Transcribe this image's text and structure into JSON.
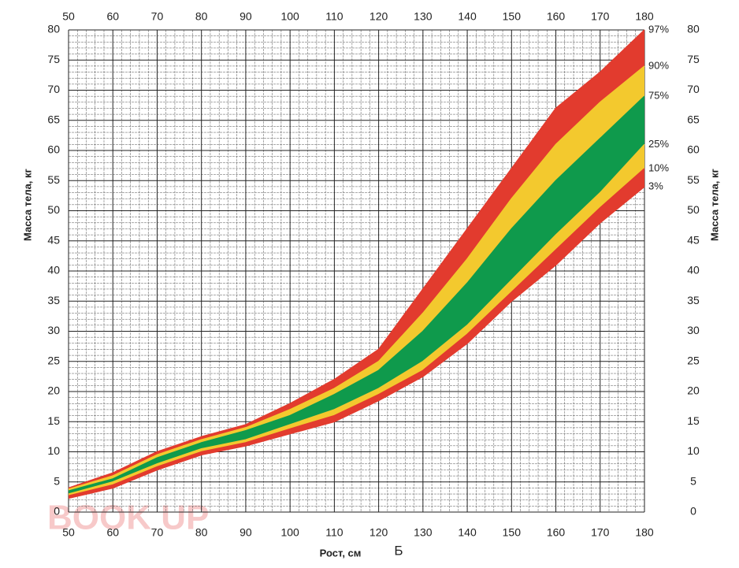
{
  "chart_data": {
    "type": "band",
    "x_label": "Рост, см",
    "y_label": "Масса тела, кг",
    "caption": "Б",
    "watermark": "BOOK UP",
    "x": [
      50,
      60,
      70,
      80,
      90,
      100,
      110,
      120,
      130,
      140,
      150,
      160,
      170,
      180
    ],
    "xlim": [
      50,
      180
    ],
    "xticks": [
      50,
      60,
      70,
      80,
      90,
      100,
      110,
      120,
      130,
      140,
      150,
      160,
      170,
      180
    ],
    "ylim": [
      0,
      80
    ],
    "yticks": [
      0,
      5,
      10,
      15,
      20,
      25,
      30,
      35,
      40,
      45,
      50,
      55,
      60,
      65,
      70,
      75,
      80
    ],
    "grid": true,
    "series": [
      {
        "name": "97%",
        "color": "#e23b2e",
        "values": [
          4,
          6.5,
          10,
          12.5,
          14.5,
          18,
          22,
          27,
          37,
          47,
          57,
          67,
          73,
          80
        ]
      },
      {
        "name": "90%",
        "color": "#f3c92e",
        "values": [
          3.8,
          6,
          9.5,
          12,
          14,
          17,
          20.5,
          25,
          33,
          42,
          52,
          61,
          68,
          74
        ]
      },
      {
        "name": "75%",
        "color": "#0f9a4c",
        "values": [
          3.5,
          5.5,
          9,
          11.5,
          13.5,
          16,
          19.5,
          23.5,
          30,
          38,
          47,
          55,
          62,
          69
        ]
      },
      {
        "name": "25%",
        "color": "#f3c92e",
        "values": [
          3,
          5,
          8,
          10.5,
          12,
          14.5,
          17,
          20.5,
          25,
          31,
          38.5,
          46,
          53,
          61
        ]
      },
      {
        "name": "10%",
        "color": "#e23b2e",
        "values": [
          2.7,
          4.5,
          7.5,
          10,
          11.5,
          13.8,
          16,
          19.5,
          23.5,
          29.5,
          36.5,
          43.5,
          50.5,
          57
        ]
      },
      {
        "name": "3%",
        "color": "#e23b2e",
        "values": [
          2.3,
          4,
          7,
          9.5,
          11,
          13,
          15,
          18.5,
          22.5,
          28,
          35,
          41,
          48,
          54
        ]
      }
    ]
  }
}
